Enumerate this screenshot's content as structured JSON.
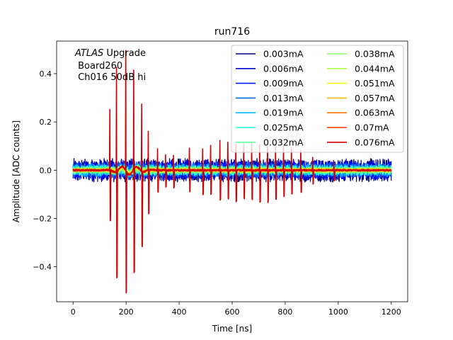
{
  "chart_data": {
    "type": "line",
    "title": "run716",
    "xlabel": "Time [ns]",
    "ylabel": "Amplitude [ADC counts]",
    "xlim": [
      -62,
      1262
    ],
    "ylim": [
      -0.545,
      0.535
    ],
    "xticks": [
      0,
      200,
      400,
      600,
      800,
      1000,
      1200
    ],
    "yticks": [
      -0.4,
      -0.2,
      0.0,
      0.2,
      0.4
    ],
    "xtick_labels": [
      "0",
      "200",
      "400",
      "600",
      "800",
      "1000",
      "1200"
    ],
    "ytick_labels": [
      "−0.4",
      "−0.2",
      "0.0",
      "0.2",
      "0.4"
    ],
    "annotation": {
      "line1_italic": "ATLAS",
      "line1_rest": " Upgrade",
      "line2": " Board260",
      "line3": " Ch016 50dB hi"
    },
    "legend_position": "top-right",
    "noise_amplitude": 0.045,
    "x_start": 0,
    "x_end": 1200,
    "series": [
      {
        "name": "0.003mA",
        "color": "#00007f"
      },
      {
        "name": "0.006mA",
        "color": "#0000d4"
      },
      {
        "name": "0.009mA",
        "color": "#0018ff"
      },
      {
        "name": "0.013mA",
        "color": "#0068ff"
      },
      {
        "name": "0.019mA",
        "color": "#00b8ff"
      },
      {
        "name": "0.025mA",
        "color": "#1cffdb"
      },
      {
        "name": "0.032mA",
        "color": "#5affa0"
      },
      {
        "name": "0.038mA",
        "color": "#8cff6a"
      },
      {
        "name": "0.044mA",
        "color": "#b0ff46"
      },
      {
        "name": "0.051mA",
        "color": "#f4f802"
      },
      {
        "name": "0.057mA",
        "color": "#ffb900"
      },
      {
        "name": "0.063mA",
        "color": "#ff7300"
      },
      {
        "name": "0.07mA",
        "color": "#ff3000"
      },
      {
        "name": "0.076mA",
        "color": "#d40000"
      }
    ],
    "spikes": [
      {
        "t": 140,
        "pos": 0.25,
        "neg": -0.21
      },
      {
        "t": 165,
        "pos": 0.43,
        "neg": -0.44
      },
      {
        "t": 200,
        "pos": 0.5,
        "neg": -0.5
      },
      {
        "t": 230,
        "pos": 0.41,
        "neg": -0.43
      },
      {
        "t": 260,
        "pos": 0.28,
        "neg": -0.31
      },
      {
        "t": 285,
        "pos": 0.16,
        "neg": -0.18
      },
      {
        "t": 320,
        "pos": 0.09,
        "neg": -0.09
      },
      {
        "t": 350,
        "pos": 0.06,
        "neg": -0.07
      },
      {
        "t": 380,
        "pos": 0.06,
        "neg": -0.07
      },
      {
        "t": 440,
        "pos": 0.09,
        "neg": -0.09
      },
      {
        "t": 490,
        "pos": 0.09,
        "neg": -0.1
      },
      {
        "t": 520,
        "pos": 0.1,
        "neg": -0.1
      },
      {
        "t": 555,
        "pos": 0.12,
        "neg": -0.12
      },
      {
        "t": 585,
        "pos": 0.12,
        "neg": -0.12
      },
      {
        "t": 615,
        "pos": 0.11,
        "neg": -0.13
      },
      {
        "t": 645,
        "pos": 0.11,
        "neg": -0.12
      },
      {
        "t": 675,
        "pos": 0.11,
        "neg": -0.12
      },
      {
        "t": 705,
        "pos": 0.11,
        "neg": -0.13
      },
      {
        "t": 735,
        "pos": 0.1,
        "neg": -0.13
      },
      {
        "t": 765,
        "pos": 0.1,
        "neg": -0.12
      },
      {
        "t": 795,
        "pos": 0.1,
        "neg": -0.11
      },
      {
        "t": 825,
        "pos": 0.09,
        "neg": -0.1
      },
      {
        "t": 860,
        "pos": 0.08,
        "neg": -0.09
      },
      {
        "t": 905,
        "pos": 0.05,
        "neg": -0.06
      },
      {
        "t": 985,
        "pos": 0.03,
        "neg": -0.04
      }
    ]
  }
}
